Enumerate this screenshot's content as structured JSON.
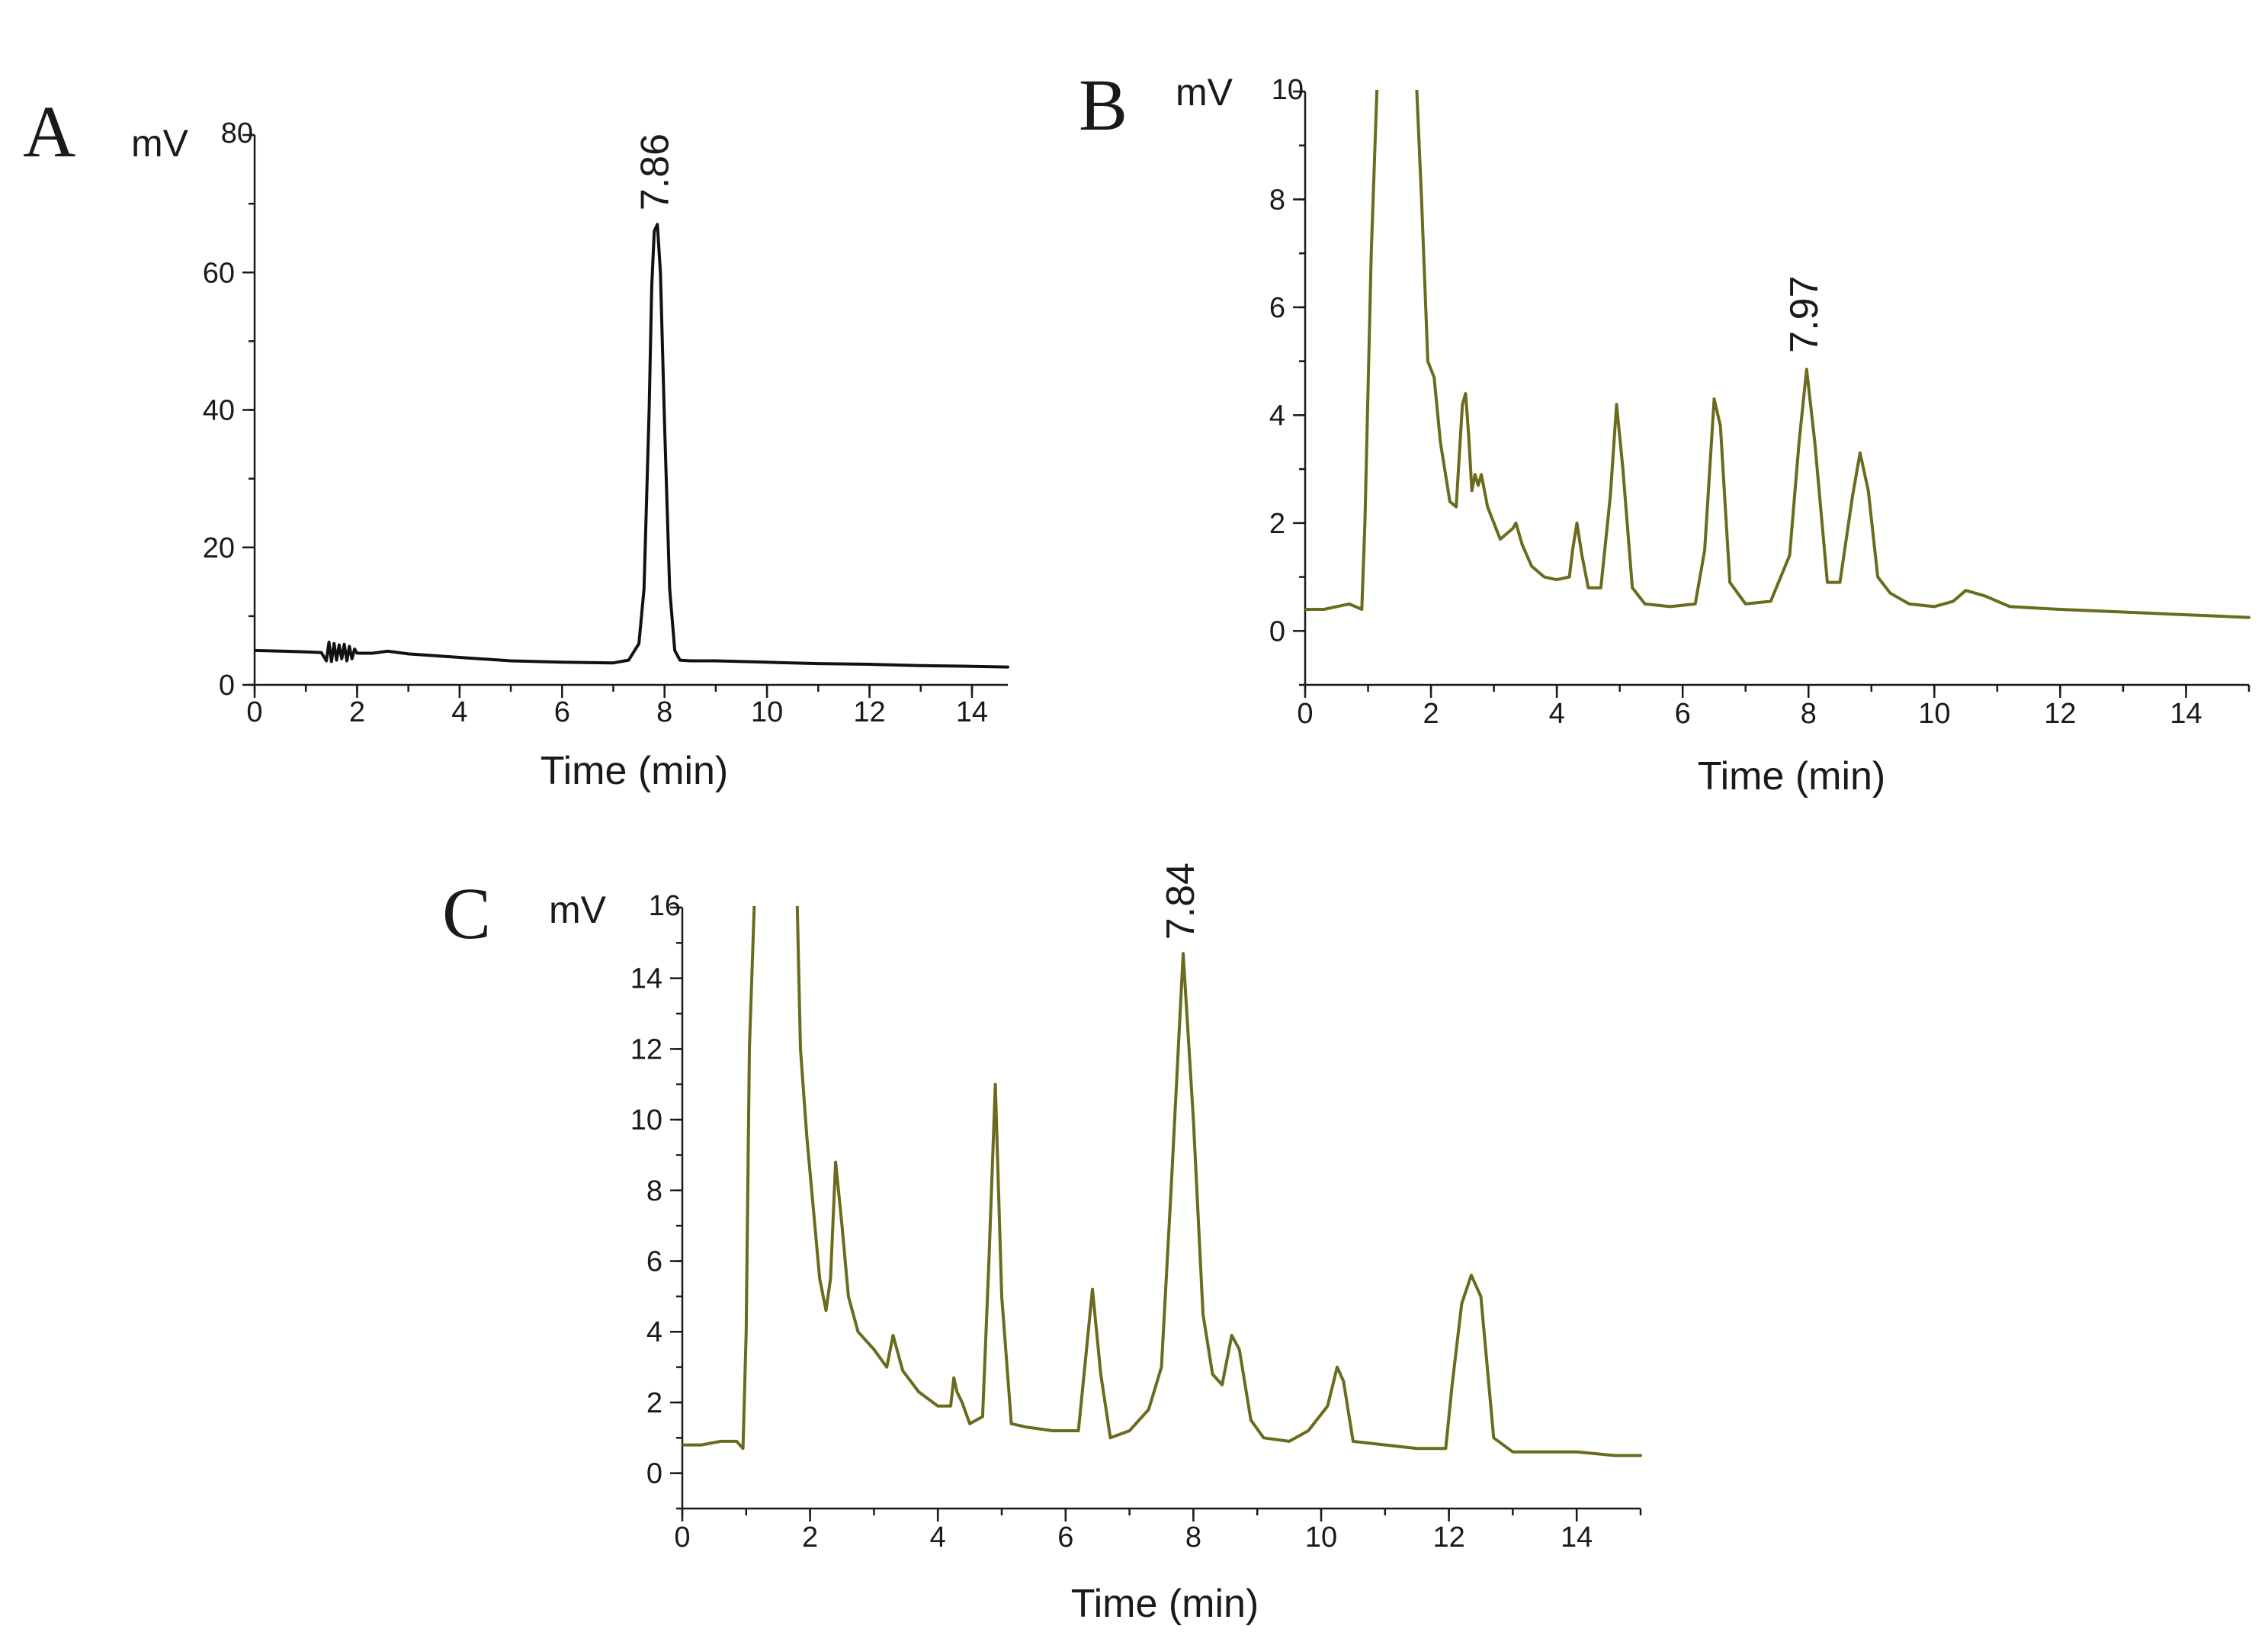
{
  "colors": {
    "axis": "#1a1a1a",
    "trace_black": "#111111",
    "trace_olive": "#6b6b1e"
  },
  "chart_data": [
    {
      "panel": "A",
      "type": "line",
      "xlabel": "Time (min)",
      "ylabel": "mV",
      "xlim": [
        0,
        14.7
      ],
      "ylim": [
        0,
        80
      ],
      "xticks": [
        0,
        2,
        4,
        6,
        8,
        10,
        12,
        14
      ],
      "yticks": [
        0,
        20,
        40,
        60,
        80
      ],
      "x_tick_labels": [
        "0",
        "2",
        "4",
        "6",
        "8",
        "10",
        "12",
        "14"
      ],
      "y_tick_labels": [
        "0",
        "20",
        "40",
        "60",
        "80"
      ],
      "y_minor_step": 10,
      "x_minor_step": 1,
      "color": "#111111",
      "annotations": [
        {
          "text": "7.86",
          "x": 7.86,
          "y": 67
        }
      ],
      "series": [
        {
          "x": [
            0,
            0.5,
            1.0,
            1.3,
            1.4,
            1.45,
            1.5,
            1.55,
            1.6,
            1.65,
            1.7,
            1.75,
            1.8,
            1.85,
            1.9,
            1.95,
            2.0,
            2.3,
            2.6,
            3.0,
            4.0,
            5.0,
            6.0,
            7.0,
            7.3,
            7.5,
            7.6,
            7.7,
            7.75,
            7.8,
            7.86,
            7.92,
            8.0,
            8.1,
            8.2,
            8.3,
            8.5,
            9.0,
            10.0,
            11.0,
            12.0,
            13.0,
            14.0,
            14.7
          ],
          "y": [
            5.0,
            4.9,
            4.8,
            4.7,
            3.5,
            6.2,
            3.4,
            6.0,
            3.6,
            5.8,
            3.8,
            5.9,
            3.5,
            5.6,
            3.8,
            5.2,
            4.6,
            4.6,
            4.9,
            4.5,
            4.0,
            3.5,
            3.3,
            3.2,
            3.6,
            6.0,
            14.0,
            40.0,
            58.0,
            66.0,
            67.0,
            60.0,
            38.0,
            14.0,
            5.0,
            3.6,
            3.5,
            3.5,
            3.3,
            3.1,
            3.0,
            2.8,
            2.7,
            2.6
          ]
        }
      ]
    },
    {
      "panel": "B",
      "type": "line",
      "xlabel": "Time (min)",
      "ylabel": "mV",
      "xlim": [
        0,
        15
      ],
      "ylim": [
        -1,
        10
      ],
      "xticks": [
        0,
        2,
        4,
        6,
        8,
        10,
        12,
        14
      ],
      "yticks": [
        0,
        2,
        4,
        6,
        8,
        10
      ],
      "x_tick_labels": [
        "0",
        "2",
        "4",
        "6",
        "8",
        "10",
        "12",
        "14"
      ],
      "y_tick_labels": [
        "0",
        "2",
        "4",
        "6",
        "8",
        "10"
      ],
      "y_minor_step": 1,
      "x_minor_step": 1,
      "color": "#6b6b1e",
      "annotations": [
        {
          "text": "7.97",
          "x": 7.97,
          "y": 4.9
        }
      ],
      "series": [
        {
          "x": [
            0,
            0.3,
            0.5,
            0.7,
            0.8,
            0.9,
            0.95,
            1.05,
            1.2,
            1.7,
            1.85,
            1.95,
            2.05,
            2.15,
            2.3,
            2.4,
            2.5,
            2.55,
            2.6,
            2.65,
            2.7,
            2.75,
            2.8,
            2.9,
            3.1,
            3.3,
            3.35,
            3.45,
            3.6,
            3.8,
            4.0,
            4.2,
            4.25,
            4.32,
            4.4,
            4.5,
            4.7,
            4.85,
            4.95,
            5.05,
            5.2,
            5.4,
            5.8,
            6.2,
            6.35,
            6.5,
            6.6,
            6.75,
            7.0,
            7.4,
            7.7,
            7.85,
            7.97,
            8.1,
            8.3,
            8.5,
            8.7,
            8.82,
            8.95,
            9.1,
            9.3,
            9.6,
            10.0,
            10.3,
            10.5,
            10.8,
            11.2,
            12.0,
            13.0,
            14.0,
            15.0
          ],
          "y": [
            0.4,
            0.4,
            0.45,
            0.5,
            0.45,
            0.4,
            2.0,
            7.0,
            12.0,
            12.0,
            8.0,
            5.0,
            4.7,
            3.5,
            2.4,
            2.3,
            4.2,
            4.4,
            3.6,
            2.6,
            2.9,
            2.7,
            2.9,
            2.3,
            1.7,
            1.9,
            2.0,
            1.6,
            1.2,
            1.0,
            0.95,
            1.0,
            1.5,
            2.0,
            1.4,
            0.8,
            0.8,
            2.5,
            4.2,
            3.0,
            0.8,
            0.5,
            0.45,
            0.5,
            1.5,
            4.3,
            3.8,
            0.9,
            0.5,
            0.55,
            1.4,
            3.5,
            4.85,
            3.5,
            0.9,
            0.9,
            2.5,
            3.3,
            2.6,
            1.0,
            0.7,
            0.5,
            0.45,
            0.55,
            0.75,
            0.65,
            0.45,
            0.4,
            0.35,
            0.3,
            0.25
          ]
        }
      ]
    },
    {
      "panel": "C",
      "type": "line",
      "xlabel": "Time (min)",
      "ylabel": "mV",
      "xlim": [
        0,
        15
      ],
      "ylim": [
        -1,
        16
      ],
      "xticks": [
        0,
        2,
        4,
        6,
        8,
        10,
        12,
        14
      ],
      "yticks": [
        0,
        2,
        4,
        6,
        8,
        10,
        12,
        14,
        16
      ],
      "x_tick_labels": [
        "0",
        "2",
        "4",
        "6",
        "8",
        "10",
        "12",
        "14"
      ],
      "y_tick_labels": [
        "0",
        "2",
        "4",
        "6",
        "8",
        "10",
        "12",
        "14",
        "16"
      ],
      "y_minor_step": 1,
      "x_minor_step": 1,
      "color": "#6b6b1e",
      "annotations": [
        {
          "text": "7.84",
          "x": 7.84,
          "y": 14.7
        }
      ],
      "series": [
        {
          "x": [
            0,
            0.3,
            0.6,
            0.85,
            0.95,
            1.0,
            1.05,
            1.2,
            1.75,
            1.85,
            1.95,
            2.05,
            2.15,
            2.25,
            2.32,
            2.4,
            2.5,
            2.6,
            2.75,
            3.0,
            3.2,
            3.3,
            3.45,
            3.7,
            4.0,
            4.2,
            4.25,
            4.3,
            4.38,
            4.5,
            4.7,
            4.8,
            4.9,
            5.0,
            5.15,
            5.4,
            5.8,
            6.2,
            6.3,
            6.42,
            6.55,
            6.7,
            7.0,
            7.3,
            7.5,
            7.65,
            7.84,
            8.0,
            8.15,
            8.3,
            8.45,
            8.6,
            8.72,
            8.9,
            9.1,
            9.5,
            9.8,
            10.1,
            10.25,
            10.35,
            10.5,
            11.0,
            11.5,
            11.95,
            12.05,
            12.2,
            12.35,
            12.5,
            12.7,
            13.0,
            14.0,
            14.6,
            15.0
          ],
          "y": [
            0.8,
            0.8,
            0.9,
            0.9,
            0.7,
            4.0,
            12.0,
            20.0,
            20.0,
            12.0,
            9.5,
            7.5,
            5.5,
            4.6,
            5.5,
            8.8,
            7.0,
            5.0,
            4.0,
            3.5,
            3.0,
            3.9,
            2.9,
            2.3,
            1.9,
            1.9,
            2.7,
            2.3,
            2.0,
            1.4,
            1.6,
            6.0,
            11.0,
            5.0,
            1.4,
            1.3,
            1.2,
            1.2,
            3.0,
            5.2,
            2.8,
            1.0,
            1.2,
            1.8,
            3.0,
            8.0,
            14.7,
            10.0,
            4.5,
            2.8,
            2.5,
            3.9,
            3.5,
            1.5,
            1.0,
            0.9,
            1.2,
            1.9,
            3.0,
            2.6,
            0.9,
            0.8,
            0.7,
            0.7,
            2.5,
            4.8,
            5.6,
            5.0,
            1.0,
            0.6,
            0.6,
            0.5,
            0.5
          ]
        }
      ]
    }
  ]
}
